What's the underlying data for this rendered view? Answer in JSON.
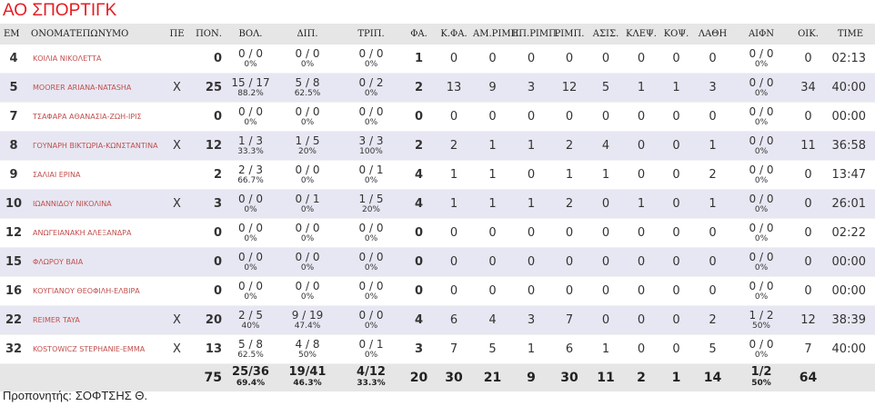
{
  "team": {
    "name": "ΑΟ ΣΠΟΡΤΙΓΚ"
  },
  "columns": [
    "ΕΜ",
    "ΟΝΟΜΑΤΕΠΩΝΥΜΟ",
    "ΠΕ",
    "ΠΟΝ.",
    "ΒΟΛ.",
    "ΔΙΠ.",
    "ΤΡΙΠ.",
    "ΦΑ.",
    "Κ.ΦΑ.",
    "ΑΜ.ΡΙΜΠ.",
    "ΕΠ.ΡΙΜΠ.",
    "ΡΙΜΠ.",
    "ΑΣΙΣ.",
    "ΚΛΕΨ.",
    "ΚΟΨ.",
    "ΛΑΘΗ",
    "ΑΙΦΝ",
    "ΟΙΚ.",
    "TIME"
  ],
  "players": [
    {
      "number": "4",
      "name": "ΚΟΙΛΙΑ ΝΙΚΟΛΕΤΤΑ",
      "starter": "",
      "pts": "0",
      "fg_m": "0 / 0",
      "fg_p": "0%",
      "two_m": "0 / 0",
      "two_p": "0%",
      "three_m": "0 / 0",
      "three_p": "0%",
      "ft": "1",
      "fouls": "0",
      "oreb": "0",
      "dreb": "0",
      "reb": "0",
      "ast": "0",
      "stl": "0",
      "blk": "0",
      "tov": "0",
      "ftx_m": "0 / 0",
      "ftx_p": "0%",
      "own": "0",
      "time": "02:13"
    },
    {
      "number": "5",
      "name": "MOORER ARIANA-NATASHA",
      "starter": "X",
      "pts": "25",
      "fg_m": "15 / 17",
      "fg_p": "88.2%",
      "two_m": "5 / 8",
      "two_p": "62.5%",
      "three_m": "0 / 2",
      "three_p": "0%",
      "ft": "2",
      "fouls": "13",
      "oreb": "9",
      "dreb": "3",
      "reb": "12",
      "ast": "5",
      "stl": "1",
      "blk": "1",
      "tov": "3",
      "ftx_m": "0 / 0",
      "ftx_p": "0%",
      "own": "34",
      "time": "40:00"
    },
    {
      "number": "7",
      "name": "ΤΣΑΦΑΡΑ ΑΘΑΝΑΣΙΑ-ΖΩΗ-ΙΡΙΣ",
      "starter": "",
      "pts": "0",
      "fg_m": "0 / 0",
      "fg_p": "0%",
      "two_m": "0 / 0",
      "two_p": "0%",
      "three_m": "0 / 0",
      "three_p": "0%",
      "ft": "0",
      "fouls": "0",
      "oreb": "0",
      "dreb": "0",
      "reb": "0",
      "ast": "0",
      "stl": "0",
      "blk": "0",
      "tov": "0",
      "ftx_m": "0 / 0",
      "ftx_p": "0%",
      "own": "0",
      "time": "00:00"
    },
    {
      "number": "8",
      "name": "ΓΟΥΝΑΡΗ ΒΙΚΤΩΡΙΑ-ΚΩΝΣΤΑΝΤΙΝΑ",
      "starter": "X",
      "pts": "12",
      "fg_m": "1 / 3",
      "fg_p": "33.3%",
      "two_m": "1 / 5",
      "two_p": "20%",
      "three_m": "3 / 3",
      "three_p": "100%",
      "ft": "2",
      "fouls": "2",
      "oreb": "1",
      "dreb": "1",
      "reb": "2",
      "ast": "4",
      "stl": "0",
      "blk": "0",
      "tov": "1",
      "ftx_m": "0 / 0",
      "ftx_p": "0%",
      "own": "11",
      "time": "36:58"
    },
    {
      "number": "9",
      "name": "ΣΑΛΙΑΙ ΕΡΙΝΑ",
      "starter": "",
      "pts": "2",
      "fg_m": "2 / 3",
      "fg_p": "66.7%",
      "two_m": "0 / 0",
      "two_p": "0%",
      "three_m": "0 / 1",
      "three_p": "0%",
      "ft": "4",
      "fouls": "1",
      "oreb": "1",
      "dreb": "0",
      "reb": "1",
      "ast": "1",
      "stl": "0",
      "blk": "0",
      "tov": "2",
      "ftx_m": "0 / 0",
      "ftx_p": "0%",
      "own": "0",
      "time": "13:47"
    },
    {
      "number": "10",
      "name": "ΙΩΑΝΝΙΔΟΥ ΝΙΚΟΛΙΝΑ",
      "starter": "X",
      "pts": "3",
      "fg_m": "0 / 0",
      "fg_p": "0%",
      "two_m": "0 / 1",
      "two_p": "0%",
      "three_m": "1 / 5",
      "three_p": "20%",
      "ft": "4",
      "fouls": "1",
      "oreb": "1",
      "dreb": "1",
      "reb": "2",
      "ast": "0",
      "stl": "1",
      "blk": "0",
      "tov": "1",
      "ftx_m": "0 / 0",
      "ftx_p": "0%",
      "own": "0",
      "time": "26:01"
    },
    {
      "number": "12",
      "name": "ΑΝΩΓΕΙΑΝΑΚΗ ΑΛΕΞΑΝΔΡΑ",
      "starter": "",
      "pts": "0",
      "fg_m": "0 / 0",
      "fg_p": "0%",
      "two_m": "0 / 0",
      "two_p": "0%",
      "three_m": "0 / 0",
      "three_p": "0%",
      "ft": "0",
      "fouls": "0",
      "oreb": "0",
      "dreb": "0",
      "reb": "0",
      "ast": "0",
      "stl": "0",
      "blk": "0",
      "tov": "0",
      "ftx_m": "0 / 0",
      "ftx_p": "0%",
      "own": "0",
      "time": "02:22"
    },
    {
      "number": "15",
      "name": "ΦΛΩΡΟΥ ΒΑΙΑ",
      "starter": "",
      "pts": "0",
      "fg_m": "0 / 0",
      "fg_p": "0%",
      "two_m": "0 / 0",
      "two_p": "0%",
      "three_m": "0 / 0",
      "three_p": "0%",
      "ft": "0",
      "fouls": "0",
      "oreb": "0",
      "dreb": "0",
      "reb": "0",
      "ast": "0",
      "stl": "0",
      "blk": "0",
      "tov": "0",
      "ftx_m": "0 / 0",
      "ftx_p": "0%",
      "own": "0",
      "time": "00:00"
    },
    {
      "number": "16",
      "name": "ΚΟΥΓΙΑΝΟΥ ΘΕΟΦΙΛΗ-ΕΛΒΙΡΑ",
      "starter": "",
      "pts": "0",
      "fg_m": "0 / 0",
      "fg_p": "0%",
      "two_m": "0 / 0",
      "two_p": "0%",
      "three_m": "0 / 0",
      "three_p": "0%",
      "ft": "0",
      "fouls": "0",
      "oreb": "0",
      "dreb": "0",
      "reb": "0",
      "ast": "0",
      "stl": "0",
      "blk": "0",
      "tov": "0",
      "ftx_m": "0 / 0",
      "ftx_p": "0%",
      "own": "0",
      "time": "00:00"
    },
    {
      "number": "22",
      "name": "REIMER TAYA",
      "starter": "X",
      "pts": "20",
      "fg_m": "2 / 5",
      "fg_p": "40%",
      "two_m": "9 / 19",
      "two_p": "47.4%",
      "three_m": "0 / 0",
      "three_p": "0%",
      "ft": "4",
      "fouls": "6",
      "oreb": "4",
      "dreb": "3",
      "reb": "7",
      "ast": "0",
      "stl": "0",
      "blk": "0",
      "tov": "2",
      "ftx_m": "1 / 2",
      "ftx_p": "50%",
      "own": "12",
      "time": "38:39"
    },
    {
      "number": "32",
      "name": "KOSTOWICZ STEPHANIE-EMMA",
      "starter": "X",
      "pts": "13",
      "fg_m": "5 / 8",
      "fg_p": "62.5%",
      "two_m": "4 / 8",
      "two_p": "50%",
      "three_m": "0 / 1",
      "three_p": "0%",
      "ft": "3",
      "fouls": "7",
      "oreb": "5",
      "dreb": "1",
      "reb": "6",
      "ast": "1",
      "stl": "0",
      "blk": "0",
      "tov": "5",
      "ftx_m": "0 / 0",
      "ftx_p": "0%",
      "own": "7",
      "time": "40:00"
    }
  ],
  "totals": {
    "pts": "75",
    "fg_m": "25/36",
    "fg_p": "69.4%",
    "two_m": "19/41",
    "two_p": "46.3%",
    "three_m": "4/12",
    "three_p": "33.3%",
    "ft": "20",
    "fouls": "30",
    "oreb": "21",
    "dreb": "9",
    "reb": "30",
    "ast": "11",
    "stl": "2",
    "blk": "1",
    "tov": "14",
    "ftx_m": "1/2",
    "ftx_p": "50%",
    "own": "64"
  },
  "coach": {
    "label": "Προπονητής:",
    "name": "ΣΟΦΤΣΗΣ Θ."
  },
  "colors": {
    "title": "#e51c23",
    "name": "#c0504d",
    "alt_row": "#e7e7f3",
    "header_bg": "#e6e6e6"
  }
}
